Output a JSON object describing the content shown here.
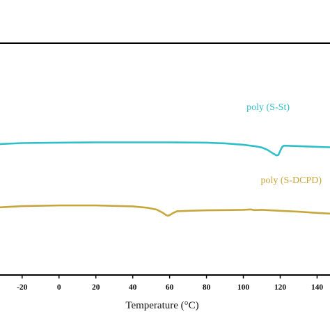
{
  "chart_data": {
    "type": "line",
    "title": "",
    "xlabel": "Temperature (°C)",
    "ylabel": "",
    "xlim": [
      -32,
      147
    ],
    "ylim": [
      0,
      1
    ],
    "grid": false,
    "legend": "none",
    "x_ticks": [
      "-20",
      "0",
      "20",
      "40",
      "60",
      "80",
      "100",
      "120",
      "140"
    ],
    "series": [
      {
        "name": "poly (S-St)",
        "color": "#2fbfc9",
        "points": [
          [
            -32,
            0.565
          ],
          [
            -20,
            0.569
          ],
          [
            0,
            0.571
          ],
          [
            20,
            0.572
          ],
          [
            40,
            0.572
          ],
          [
            60,
            0.572
          ],
          [
            80,
            0.571
          ],
          [
            90,
            0.568
          ],
          [
            100,
            0.562
          ],
          [
            106,
            0.556
          ],
          [
            110,
            0.55
          ],
          [
            113,
            0.54
          ],
          [
            116,
            0.525
          ],
          [
            118,
            0.516
          ],
          [
            119,
            0.518
          ],
          [
            120,
            0.535
          ],
          [
            121,
            0.552
          ],
          [
            122,
            0.558
          ],
          [
            130,
            0.556
          ],
          [
            140,
            0.553
          ],
          [
            147,
            0.551
          ]
        ]
      },
      {
        "name": "poly (S-DCPD)",
        "color": "#c7a63c",
        "points": [
          [
            -32,
            0.292
          ],
          [
            -20,
            0.297
          ],
          [
            0,
            0.3
          ],
          [
            20,
            0.3
          ],
          [
            40,
            0.296
          ],
          [
            48,
            0.29
          ],
          [
            53,
            0.282
          ],
          [
            56,
            0.27
          ],
          [
            58,
            0.259
          ],
          [
            59,
            0.256
          ],
          [
            60,
            0.258
          ],
          [
            62,
            0.268
          ],
          [
            64,
            0.275
          ],
          [
            70,
            0.277
          ],
          [
            80,
            0.279
          ],
          [
            90,
            0.28
          ],
          [
            100,
            0.281
          ],
          [
            104,
            0.283
          ],
          [
            106,
            0.28
          ],
          [
            110,
            0.281
          ],
          [
            120,
            0.277
          ],
          [
            130,
            0.273
          ],
          [
            140,
            0.268
          ],
          [
            147,
            0.265
          ]
        ]
      }
    ]
  }
}
